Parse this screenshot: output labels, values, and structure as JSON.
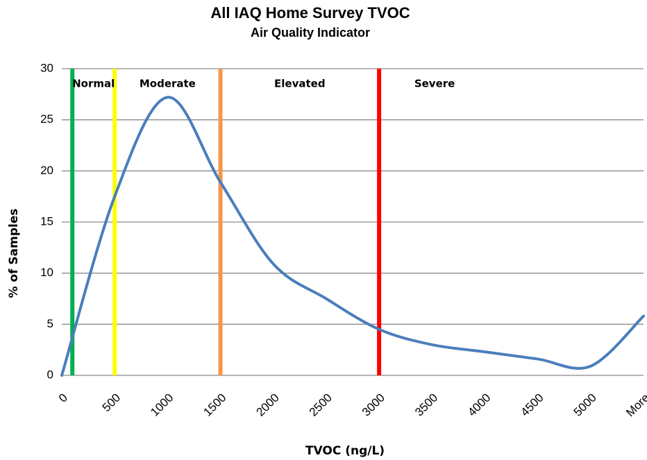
{
  "chart_data": {
    "type": "line",
    "title": "All IAQ Home Survey TVOC",
    "subtitle": "Air Quality Indicator",
    "x_label": "TVOC (ng/L)",
    "y_label": "% of Samples",
    "categories": [
      "0",
      "500",
      "1000",
      "1500",
      "2000",
      "2500",
      "3000",
      "3500",
      "4000",
      "4500",
      "5000",
      "More"
    ],
    "series": [
      {
        "color": "#4a7ebb",
        "values": [
          0,
          17.5,
          27.2,
          18.9,
          10.9,
          7.5,
          4.5,
          3,
          2.3,
          1.6,
          0.9,
          5.8
        ]
      }
    ],
    "ylim": [
      0,
      30
    ],
    "yticks": [
      0,
      5,
      10,
      15,
      20,
      25,
      30
    ],
    "grid": true,
    "thresholds": [
      {
        "value": 100,
        "color": "#00b050",
        "label": "Normal"
      },
      {
        "value": 500,
        "color": "#ffff00",
        "label": "Moderate"
      },
      {
        "value": 1500,
        "color": "#f79646",
        "label": "Elevated"
      },
      {
        "value": 3000,
        "color": "#ff0000",
        "label": "Severe"
      }
    ]
  }
}
